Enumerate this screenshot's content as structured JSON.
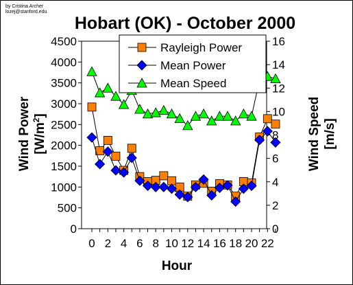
{
  "credit": [
    "by Cristina Archer",
    "lozej@stanford.edu"
  ],
  "chart_data": {
    "type": "line",
    "title": "Hobart (OK) - October 2000",
    "xlabel": "Hour",
    "ylabel_main": "Wind Power",
    "ylabel_unit_open": "[W/m",
    "ylabel_unit_sup": "2",
    "ylabel_unit_close": "]",
    "y2label_main": "Wind Speed",
    "y2label_unit": "[m/s]",
    "xlim": [
      0,
      23
    ],
    "ylim": [
      0,
      4500
    ],
    "y2lim": [
      0,
      16
    ],
    "xticks": [
      "0",
      "2",
      "4",
      "6",
      "8",
      "10",
      "12",
      "14",
      "16",
      "18",
      "20",
      "22"
    ],
    "yticks": [
      "0",
      "500",
      "1000",
      "1500",
      "2000",
      "2500",
      "3000",
      "3500",
      "4000",
      "4500"
    ],
    "y2ticks": [
      "0",
      "2",
      "4",
      "6",
      "8",
      "10",
      "12",
      "14",
      "16"
    ],
    "legend_position": "top-center",
    "grid": false,
    "x": [
      0,
      1,
      2,
      3,
      4,
      5,
      6,
      7,
      8,
      9,
      10,
      11,
      12,
      13,
      14,
      15,
      16,
      17,
      18,
      19,
      20,
      21,
      22,
      23
    ],
    "series": [
      {
        "name": "Rayleigh Power",
        "axis": "left",
        "marker": "square",
        "color": "#ff7f00",
        "values": [
          2920,
          1870,
          2120,
          1740,
          1400,
          1930,
          1250,
          1130,
          1160,
          1270,
          1150,
          1000,
          780,
          1050,
          1090,
          900,
          1080,
          1050,
          780,
          1130,
          1100,
          2200,
          2640,
          2510
        ]
      },
      {
        "name": "Mean Power",
        "axis": "left",
        "marker": "diamond",
        "color": "#0000ff",
        "values": [
          2190,
          1550,
          1850,
          1400,
          1350,
          1700,
          1150,
          1030,
          1000,
          1000,
          960,
          820,
          760,
          1000,
          1180,
          800,
          980,
          1040,
          650,
          960,
          1030,
          2130,
          2340,
          2070
        ]
      },
      {
        "name": "Mean Speed",
        "axis": "right",
        "marker": "triangle",
        "color": "#00ff00",
        "values": [
          13.4,
          11.6,
          12.0,
          11.3,
          10.6,
          11.8,
          10.2,
          9.8,
          9.9,
          10.1,
          9.8,
          9.4,
          8.8,
          9.6,
          9.8,
          9.2,
          9.6,
          9.6,
          9.2,
          9.8,
          9.6,
          12.7,
          13.0,
          12.8
        ]
      }
    ]
  }
}
